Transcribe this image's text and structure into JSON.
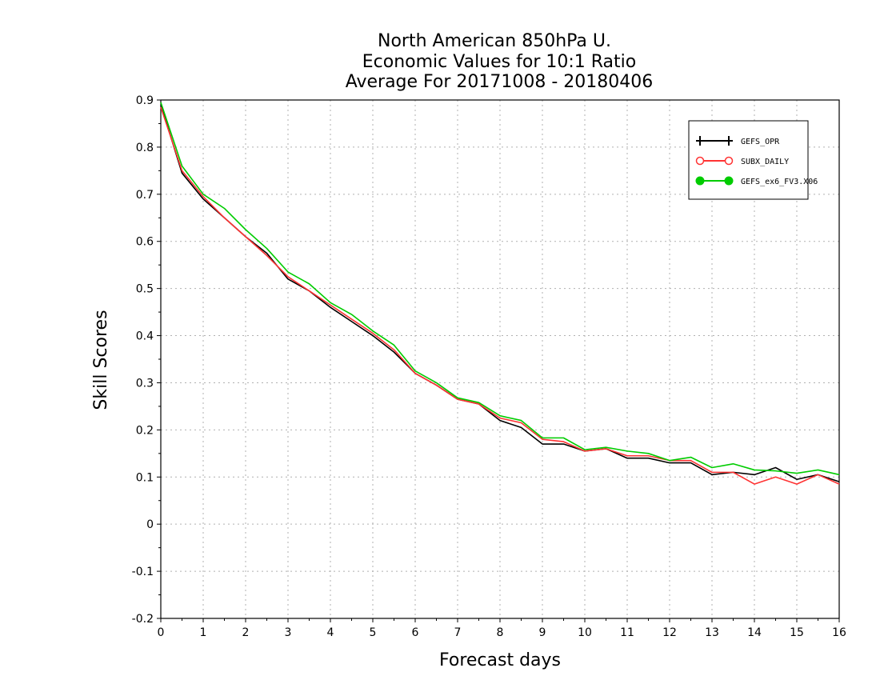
{
  "chart_data": {
    "type": "line",
    "title_lines": [
      "North American 850hPa U.",
      "Economic Values for 10:1 Ratio",
      "Average For 20171008 - 20180406"
    ],
    "xlabel": "Forecast days",
    "ylabel": "Skill Scores",
    "xlim": [
      0,
      16
    ],
    "ylim": [
      -0.2,
      0.9
    ],
    "xticks": [
      "0",
      "1",
      "2",
      "3",
      "4",
      "5",
      "6",
      "7",
      "8",
      "9",
      "10",
      "11",
      "12",
      "13",
      "14",
      "15",
      "16"
    ],
    "yticks": [
      "0.9",
      "0.8",
      "0.7",
      "0.6",
      "0.5",
      "0.4",
      "0.3",
      "0.2",
      "0.1",
      "0",
      "-0.1",
      "-0.2"
    ],
    "grid": true,
    "legend_position": "top-right",
    "x": [
      0,
      0.5,
      1,
      1.5,
      2,
      2.5,
      3,
      3.5,
      4,
      4.5,
      5,
      5.5,
      6,
      6.5,
      7,
      7.5,
      8,
      8.5,
      9,
      9.5,
      10,
      10.5,
      11,
      11.5,
      12,
      12.5,
      13,
      13.5,
      14,
      14.5,
      15,
      15.5,
      16
    ],
    "series": [
      {
        "name": "GEFS_OPR",
        "color": "#000000",
        "marker": "plus",
        "values": [
          0.89,
          0.745,
          0.69,
          0.65,
          0.61,
          0.575,
          0.52,
          0.495,
          0.46,
          0.43,
          0.4,
          0.365,
          0.32,
          0.295,
          0.265,
          0.255,
          0.22,
          0.205,
          0.17,
          0.17,
          0.155,
          0.16,
          0.14,
          0.14,
          0.13,
          0.13,
          0.105,
          0.11,
          0.105,
          0.12,
          0.095,
          0.105,
          0.09
        ]
      },
      {
        "name": "SUBX_DAILY",
        "color": "#ff3333",
        "marker": "open-circle",
        "values": [
          0.885,
          0.75,
          0.695,
          0.65,
          0.61,
          0.57,
          0.525,
          0.495,
          0.465,
          0.435,
          0.405,
          0.37,
          0.32,
          0.295,
          0.265,
          0.255,
          0.225,
          0.215,
          0.18,
          0.175,
          0.155,
          0.16,
          0.145,
          0.145,
          0.135,
          0.135,
          0.11,
          0.11,
          0.085,
          0.1,
          0.085,
          0.105,
          0.085
        ]
      },
      {
        "name": "GEFS_ex6_FV3.X06",
        "color": "#00cc00",
        "marker": "filled-circle",
        "values": [
          0.895,
          0.76,
          0.7,
          0.67,
          0.625,
          0.585,
          0.535,
          0.51,
          0.47,
          0.445,
          0.41,
          0.38,
          0.325,
          0.3,
          0.268,
          0.258,
          0.23,
          0.22,
          0.183,
          0.183,
          0.158,
          0.163,
          0.155,
          0.15,
          0.135,
          0.142,
          0.12,
          0.128,
          0.115,
          0.113,
          0.108,
          0.115,
          0.105
        ]
      }
    ]
  }
}
